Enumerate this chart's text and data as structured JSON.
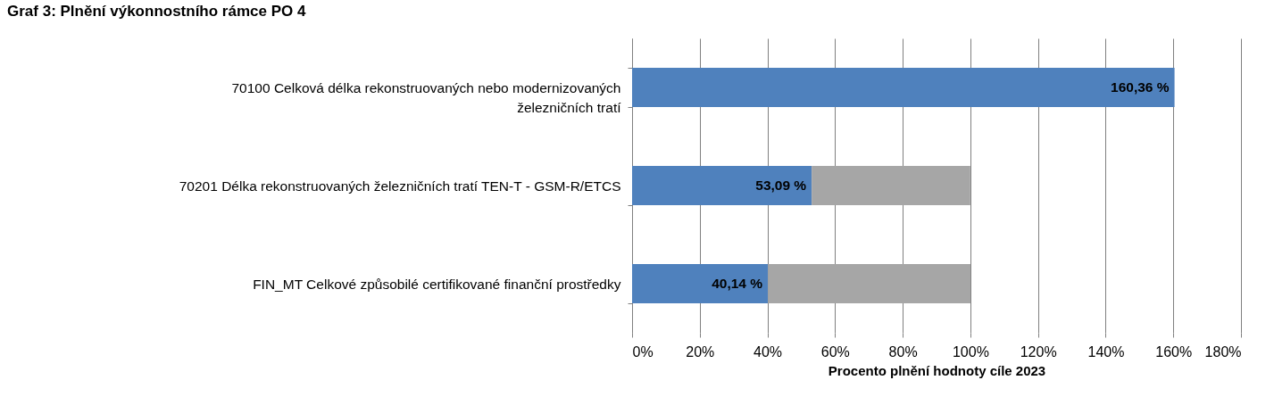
{
  "chart_data": {
    "type": "bar",
    "orientation": "horizontal",
    "stacked": true,
    "title": "Graf 3: Plnění výkonnostního rámce PO 4",
    "xlabel": "Procento plnění hodnoty  cíle 2023",
    "categories": [
      "70100 Celková délka rekonstruovaných nebo modernizovaných\nželezničních tratí",
      "70201 Délka rekonstruovaných železničních tratí TEN-T - GSM-R/ETCS",
      "FIN_MT Celkové způsobilé certifikované finanční prostředky"
    ],
    "series": [
      {
        "color": "#4f81bd",
        "values": [
          160.36,
          53.09,
          40.14
        ],
        "value_labels": [
          "160,36 %",
          "53,09 %",
          "40,14 %"
        ]
      },
      {
        "color": "#a6a6a6",
        "values": [
          null,
          46.9,
          59.9
        ]
      }
    ],
    "xlim": [
      0,
      180
    ],
    "xticks": [
      {
        "value": 0,
        "label": "0%"
      },
      {
        "value": 20,
        "label": "20%"
      },
      {
        "value": 40,
        "label": "40%"
      },
      {
        "value": 60,
        "label": "60%"
      },
      {
        "value": 80,
        "label": "80%"
      },
      {
        "value": 100,
        "label": "100%"
      },
      {
        "value": 120,
        "label": "120%"
      },
      {
        "value": 140,
        "label": "140%"
      },
      {
        "value": 160,
        "label": "160%"
      },
      {
        "value": 180,
        "label": "180%"
      }
    ],
    "grid": "x",
    "legend": false
  }
}
